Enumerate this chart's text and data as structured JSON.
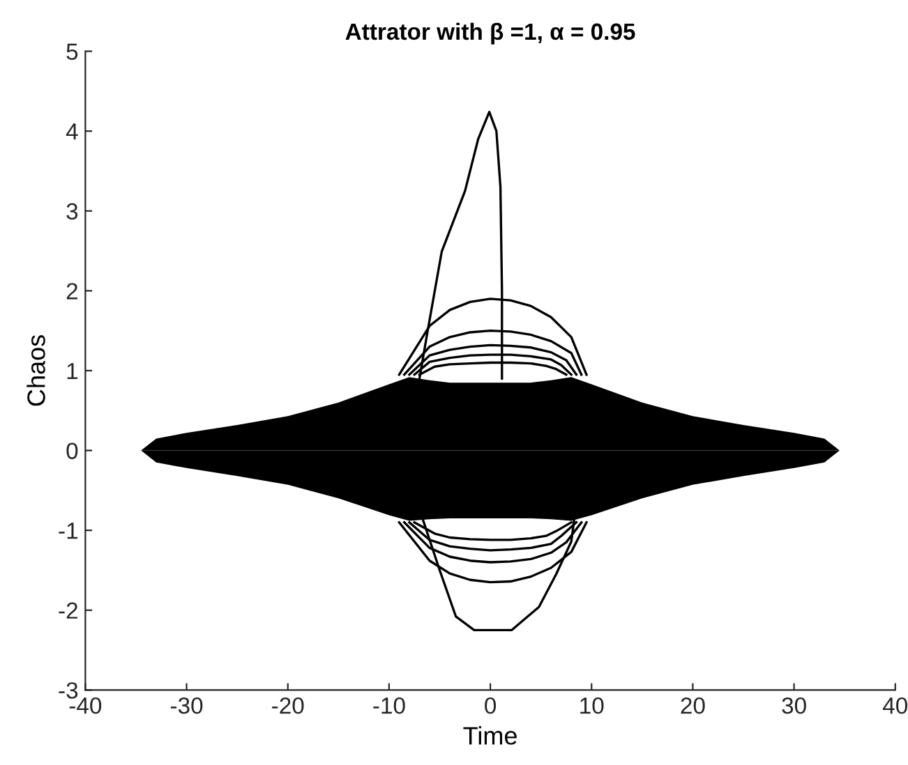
{
  "chart_data": {
    "type": "line",
    "title": "Attrator with β =1, α = 0.95",
    "xlabel": "Time",
    "ylabel": "Chaos",
    "xlim": [
      -40,
      40
    ],
    "xticks": [
      -40,
      -30,
      -20,
      -10,
      0,
      10,
      20,
      30,
      40
    ],
    "ylim": [
      -3,
      5
    ],
    "yticks": [
      -3,
      -2,
      -1,
      0,
      1,
      2,
      3,
      4,
      5
    ],
    "grid": false,
    "legend": false,
    "marker": "none",
    "line_style": "solid",
    "series": [
      {
        "type": "area",
        "color": "#000000",
        "x": [
          -34.5,
          -33,
          -30,
          -25,
          -20,
          -15,
          -10,
          -8,
          -6,
          -4,
          0,
          4,
          6,
          8,
          10,
          15,
          20,
          25,
          30,
          33,
          34.5
        ],
        "values": [
          0,
          0.15,
          0.22,
          0.32,
          0.43,
          0.6,
          0.83,
          0.92,
          0.88,
          0.85,
          0.85,
          0.85,
          0.88,
          0.92,
          0.83,
          0.6,
          0.43,
          0.32,
          0.22,
          0.15,
          0
        ]
      },
      {
        "type": "area",
        "color": "#000000",
        "x": [
          -34.5,
          -33,
          -30,
          -25,
          -20,
          -15,
          -10,
          -8,
          -6,
          -4,
          0,
          4,
          6,
          8,
          10,
          15,
          20,
          25,
          30,
          33,
          34.5
        ],
        "values": [
          0,
          -0.15,
          -0.22,
          -0.32,
          -0.43,
          -0.6,
          -0.81,
          -0.88,
          -0.86,
          -0.85,
          -0.85,
          -0.85,
          -0.86,
          -0.88,
          -0.81,
          -0.6,
          -0.43,
          -0.32,
          -0.22,
          -0.15,
          0
        ]
      },
      {
        "color": "#000000",
        "x": [
          -9,
          -6,
          -4,
          -2,
          0,
          2,
          4,
          6,
          8,
          9.5
        ],
        "values": [
          0.95,
          1.56,
          1.76,
          1.86,
          1.9,
          1.88,
          1.81,
          1.67,
          1.42,
          0.95
        ]
      },
      {
        "color": "#000000",
        "x": [
          -8.5,
          -6,
          -4,
          -2,
          0,
          2,
          4,
          6,
          8,
          9
        ],
        "values": [
          0.95,
          1.3,
          1.42,
          1.48,
          1.5,
          1.49,
          1.45,
          1.37,
          1.22,
          0.95
        ]
      },
      {
        "color": "#000000",
        "x": [
          -8,
          -6,
          -4,
          -2,
          0,
          2,
          4,
          6,
          7.5,
          8.5
        ],
        "values": [
          0.95,
          1.19,
          1.26,
          1.3,
          1.32,
          1.31,
          1.29,
          1.23,
          1.13,
          0.95
        ]
      },
      {
        "color": "#000000",
        "x": [
          -7.5,
          -6,
          -4,
          -2,
          0,
          2,
          4,
          6,
          7,
          8
        ],
        "values": [
          0.95,
          1.11,
          1.16,
          1.19,
          1.2,
          1.2,
          1.18,
          1.14,
          1.07,
          0.95
        ]
      },
      {
        "color": "#000000",
        "x": [
          -7,
          -5.5,
          -4,
          -2,
          0,
          2,
          4,
          5.5,
          6.5,
          7.5
        ],
        "values": [
          0.95,
          1.05,
          1.08,
          1.09,
          1.1,
          1.1,
          1.09,
          1.06,
          1.02,
          0.95
        ]
      },
      {
        "color": "#000000",
        "x": [
          -9,
          -6,
          -4,
          -2,
          0,
          2,
          4,
          6,
          8,
          9.5
        ],
        "values": [
          -0.9,
          -1.38,
          -1.54,
          -1.62,
          -1.65,
          -1.64,
          -1.58,
          -1.47,
          -1.27,
          -0.9
        ]
      },
      {
        "color": "#000000",
        "x": [
          -8.5,
          -6,
          -4,
          -2,
          0,
          2,
          4,
          6,
          7.5,
          9
        ],
        "values": [
          -0.9,
          -1.22,
          -1.33,
          -1.38,
          -1.4,
          -1.39,
          -1.36,
          -1.28,
          -1.15,
          -0.9
        ]
      },
      {
        "color": "#000000",
        "x": [
          -8,
          -6,
          -4,
          -2,
          0,
          2,
          4,
          6,
          7,
          8.5
        ],
        "values": [
          -0.9,
          -1.12,
          -1.2,
          -1.23,
          -1.25,
          -1.24,
          -1.22,
          -1.17,
          -1.07,
          -0.9
        ]
      },
      {
        "color": "#000000",
        "x": [
          -7.5,
          -5.5,
          -4,
          -2,
          0,
          2,
          4,
          5.5,
          6.5,
          8
        ],
        "values": [
          -0.9,
          -1.04,
          -1.09,
          -1.11,
          -1.12,
          -1.12,
          -1.1,
          -1.07,
          -1.01,
          -0.9
        ]
      },
      {
        "color": "#000000",
        "x": [
          -7,
          -6.2,
          -4.8,
          -2.5,
          -1.2,
          -0.1,
          0.6,
          1.0,
          1.15,
          1.15,
          1.15
        ],
        "values": [
          0.9,
          1.49,
          2.49,
          3.25,
          3.9,
          4.24,
          4.0,
          3.3,
          2.0,
          1.0,
          0.9
        ]
      },
      {
        "color": "#000000",
        "x": [
          -6.7,
          -5,
          -3.4,
          -1.6,
          2.1,
          4.8,
          6.5,
          8,
          8.3
        ],
        "values": [
          -0.85,
          -1.5,
          -2.08,
          -2.25,
          -2.25,
          -1.96,
          -1.55,
          -1.14,
          -0.85
        ]
      }
    ]
  }
}
